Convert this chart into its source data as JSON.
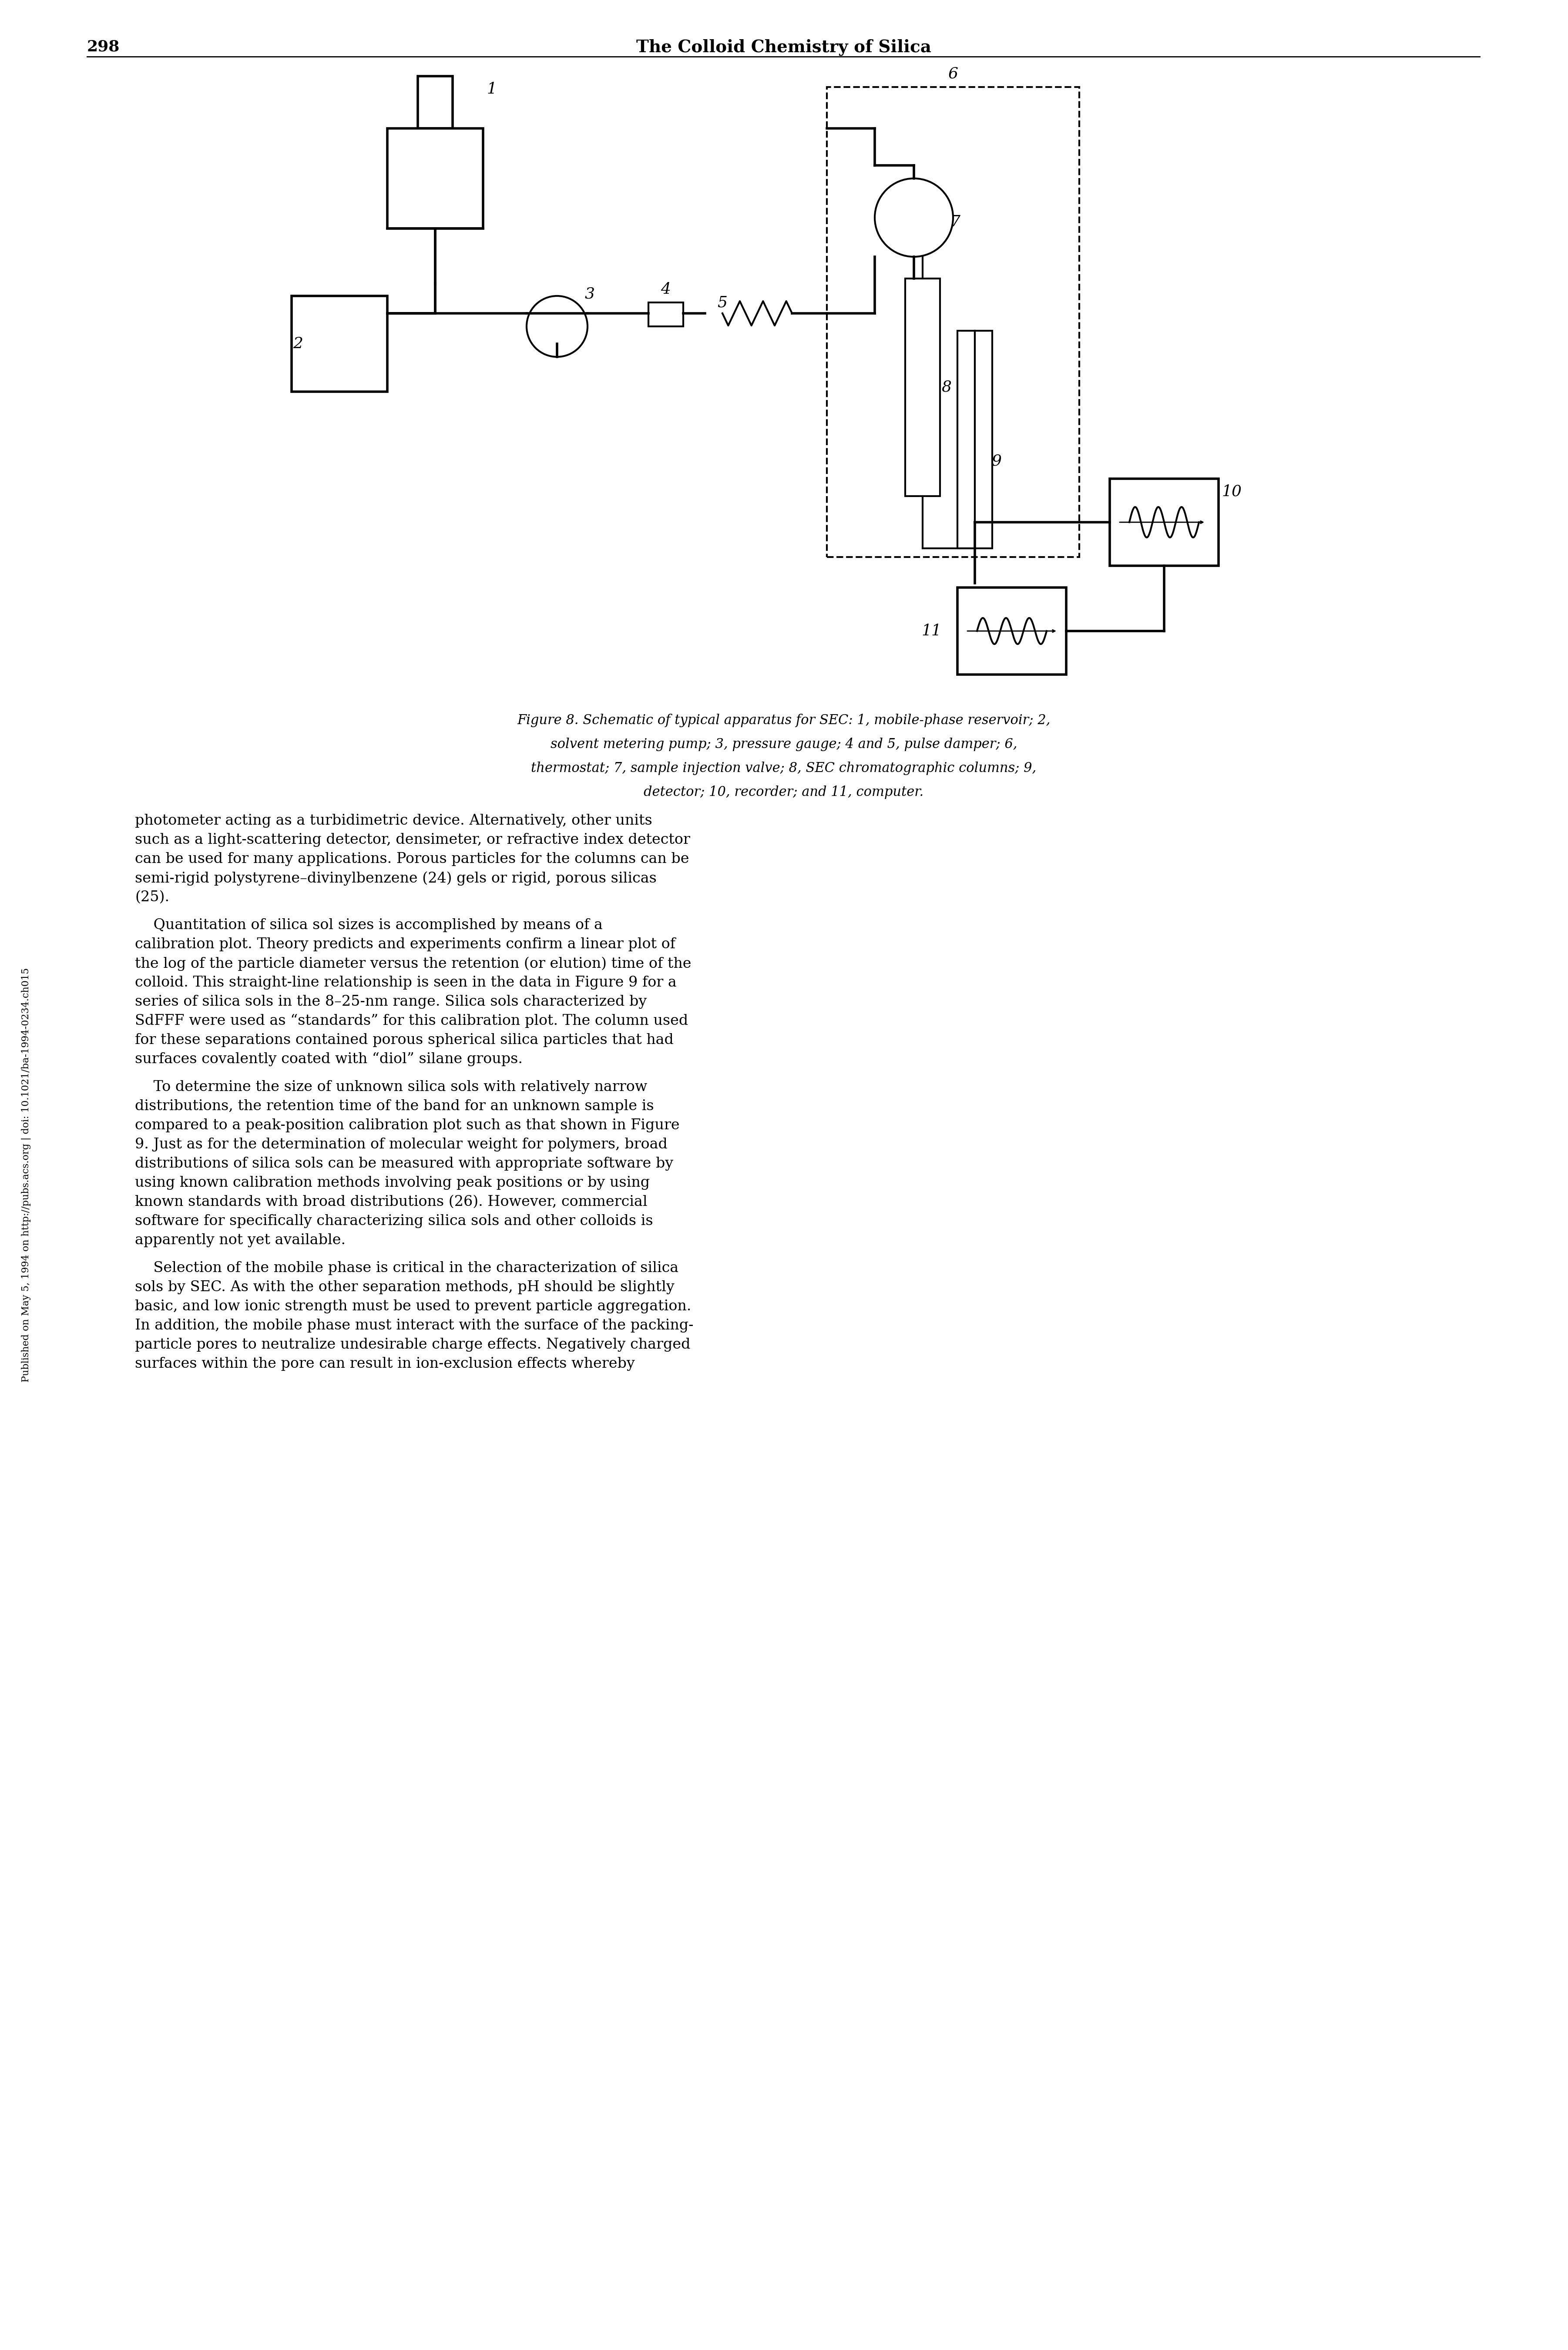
{
  "page_number": "298",
  "header_title": "The Colloid Chemistry of Silica",
  "figure_caption_line1": "Figure 8. Schematic of typical apparatus for SEC: 1, mobile-phase reservoir; 2,",
  "figure_caption_line2": "solvent metering pump; 3, pressure gauge; 4 and 5, pulse damper; 6,",
  "figure_caption_line3": "thermostat; 7, sample injection valve; 8, SEC chromatographic columns; 9,",
  "figure_caption_line4": "detector; 10, recorder; and 11, computer.",
  "side_text": "Published on May 5, 1994 on http://pubs.acs.org | doi: 10.1021/ba-1994-0234.ch015",
  "paragraph1": "photometer acting as a turbidimetric device. Alternatively, other units\nsuch as a light-scattering detector, densimeter, or refractive index detector\ncan be used for many applications. Porous particles for the columns can be\nsemi-rigid polystyrene–divinylbenzene (24) gels or rigid, porous silicas\n(25).",
  "paragraph2": "Quantitation of silica sol sizes is accomplished by means of a\ncalibration plot. Theory predicts and experiments confirm a linear plot of\nthe log of the particle diameter versus the retention (or elution) time of the\ncolloid. This straight-line relationship is seen in the data in Figure 9 for a\nseries of silica sols in the 8–25-nm range. Silica sols characterized by\nSdFFF were used as “standards” for this calibration plot. The column used\nfor these separations contained porous spherical silica particles that had\nsurfaces covalently coated with “diol” silane groups.",
  "paragraph3": "To determine the size of unknown silica sols with relatively narrow\ndistributions, the retention time of the band for an unknown sample is\ncompared to a peak-position calibration plot such as that shown in Figure\n9. Just as for the determination of molecular weight for polymers, broad\ndistributions of silica sols can be measured with appropriate software by\nusing known calibration methods involving peak positions or by using\nknown standards with broad distributions (26). However, commercial\nsoftware for specifically characterizing silica sols and other colloids is\napparently not yet available.",
  "paragraph4": "Selection of the mobile phase is critical in the characterization of silica\nsols by SEC. As with the other separation methods, pH should be slightly\nbasic, and low ionic strength must be used to prevent particle aggregation.\nIn addition, the mobile phase must interact with the surface of the packing-\nparticle pores to neutralize undesirable charge effects. Negatively charged\nsurfaces within the pore can result in ion-exclusion effects whereby",
  "bg_color": "#ffffff",
  "text_color": "#000000",
  "font_size_header": 28,
  "font_size_caption": 22,
  "font_size_body": 24,
  "font_size_page_num": 26
}
